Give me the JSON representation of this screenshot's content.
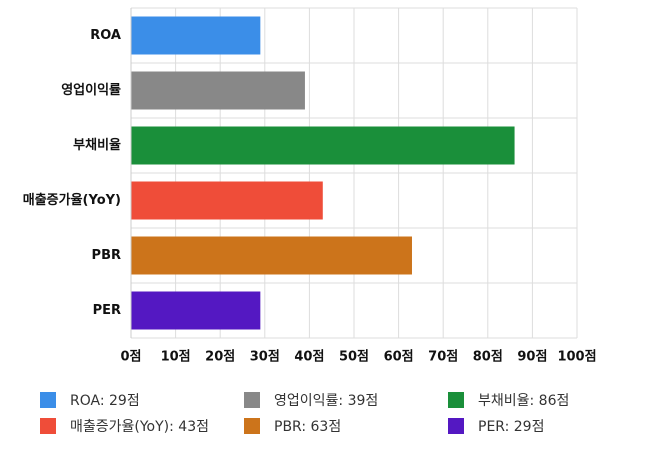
{
  "chart_data": {
    "type": "bar",
    "orientation": "horizontal",
    "categories": [
      "ROA",
      "영업이익률",
      "부채비율",
      "매출증가율(YoY)",
      "PBR",
      "PER"
    ],
    "values": [
      29,
      39,
      86,
      43,
      63,
      29
    ],
    "colors": [
      "#3b8ee8",
      "#888888",
      "#1a8f3a",
      "#ef4d39",
      "#cc741b",
      "#5418c2"
    ],
    "xlim": [
      0,
      100
    ],
    "xticks": [
      0,
      10,
      20,
      30,
      40,
      50,
      60,
      70,
      80,
      90,
      100
    ],
    "tick_suffix": "점",
    "grid": true,
    "legend_position": "bottom",
    "legend": [
      "ROA: 29점",
      "영업이익률: 39점",
      "부채비율: 86점",
      "매출증가율(YoY): 43점",
      "PBR: 63점",
      "PER: 29점"
    ]
  }
}
